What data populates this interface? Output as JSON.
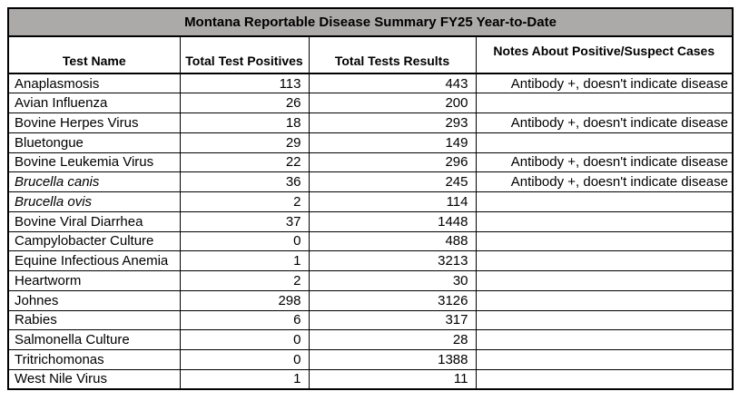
{
  "title": "Montana Reportable Disease Summary FY25 Year-to-Date",
  "colors": {
    "title_bg": "#ACA9A9",
    "border": "#000000",
    "cell_bg": "#FFFFFF"
  },
  "table": {
    "columns": [
      "Test Name",
      "Total Test Positives",
      "Total Tests Results",
      "Notes About Positive/Suspect Cases"
    ],
    "rows": [
      {
        "test": "Anaplasmosis",
        "italic": false,
        "positives": "113",
        "total_tests": "443",
        "note": "Antibody +, doesn't indicate disease"
      },
      {
        "test": "Avian Influenza",
        "italic": false,
        "positives": "26",
        "total_tests": "200",
        "note": ""
      },
      {
        "test": "Bovine Herpes Virus",
        "italic": false,
        "positives": "18",
        "total_tests": "293",
        "note": "Antibody +, doesn't indicate disease"
      },
      {
        "test": "Bluetongue",
        "italic": false,
        "positives": "29",
        "total_tests": "149",
        "note": ""
      },
      {
        "test": "Bovine Leukemia Virus",
        "italic": false,
        "positives": "22",
        "total_tests": "296",
        "note": "Antibody +, doesn't indicate disease"
      },
      {
        "test": "Brucella canis",
        "italic": true,
        "positives": "36",
        "total_tests": "245",
        "note": "Antibody +, doesn't indicate disease"
      },
      {
        "test": "Brucella ovis",
        "italic": true,
        "positives": "2",
        "total_tests": "114",
        "note": ""
      },
      {
        "test": "Bovine Viral Diarrhea",
        "italic": false,
        "positives": "37",
        "total_tests": "1448",
        "note": ""
      },
      {
        "test": "Campylobacter Culture",
        "italic": false,
        "positives": "0",
        "total_tests": "488",
        "note": ""
      },
      {
        "test": "Equine Infectious Anemia",
        "italic": false,
        "positives": "1",
        "total_tests": "3213",
        "note": ""
      },
      {
        "test": "Heartworm",
        "italic": false,
        "positives": "2",
        "total_tests": "30",
        "note": ""
      },
      {
        "test": "Johnes",
        "italic": false,
        "positives": "298",
        "total_tests": "3126",
        "note": ""
      },
      {
        "test": "Rabies",
        "italic": false,
        "positives": "6",
        "total_tests": "317",
        "note": ""
      },
      {
        "test": "Salmonella Culture",
        "italic": false,
        "positives": "0",
        "total_tests": "28",
        "note": ""
      },
      {
        "test": "Tritrichomonas",
        "italic": false,
        "positives": "0",
        "total_tests": "1388",
        "note": ""
      },
      {
        "test": "West Nile Virus",
        "italic": false,
        "positives": "1",
        "total_tests": "11",
        "note": ""
      }
    ]
  }
}
